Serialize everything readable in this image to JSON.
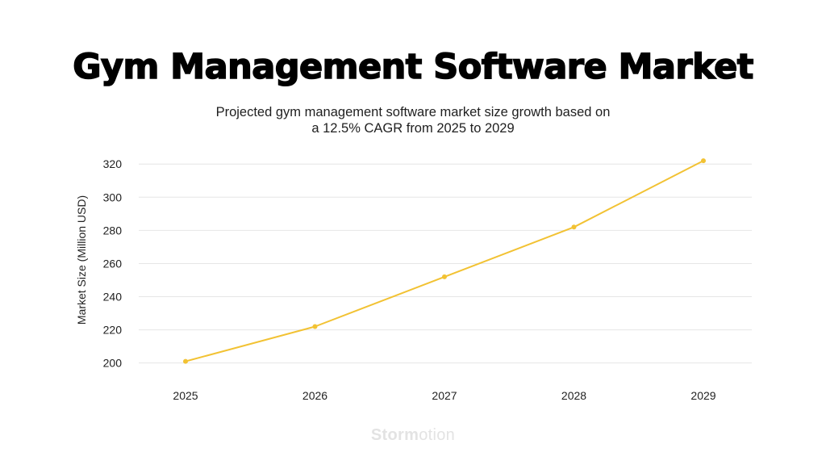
{
  "chart_data": {
    "type": "line",
    "title": "Gym Management Software Market",
    "subtitle": "Projected gym management software market size growth based on a 12.5% CAGR from 2025 to 2029",
    "xlabel": "",
    "ylabel": "Market Size (Million USD)",
    "categories": [
      "2025",
      "2026",
      "2027",
      "2028",
      "2029"
    ],
    "series": [
      {
        "values": [
          201,
          222,
          252,
          282,
          322
        ]
      }
    ],
    "yticks": [
      200,
      220,
      240,
      260,
      280,
      300,
      320
    ],
    "ylim": [
      194,
      324
    ],
    "grid": true,
    "legend": "none",
    "colors": {
      "line": "#f2c233",
      "grid": "#e6e6e6"
    }
  },
  "watermark": {
    "bold": "Storm",
    "light": "otion"
  }
}
